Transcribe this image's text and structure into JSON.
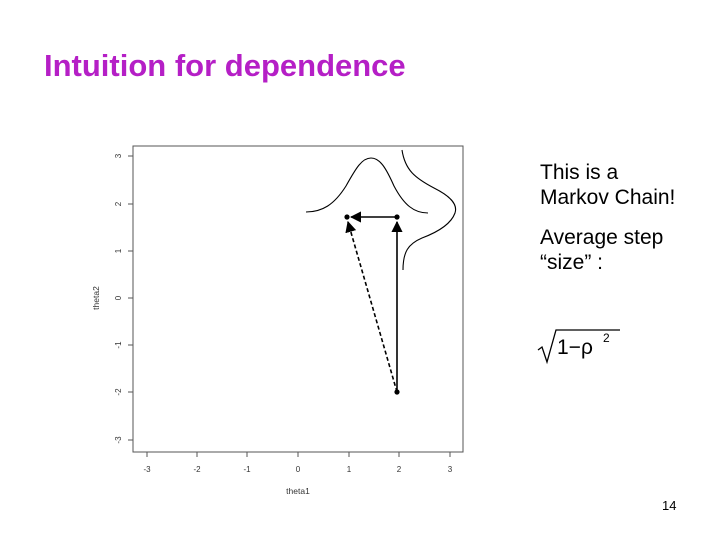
{
  "slide": {
    "title": "Intuition for dependence",
    "page_number": "14"
  },
  "bullets": [
    "This is a Markov Chain!",
    "Average step “size” :"
  ],
  "formula": {
    "radicand_text": "1−ρ",
    "exponent": "2"
  },
  "plot": {
    "xlabel": "theta1",
    "ylabel": "theta2",
    "xticks": [
      "-3",
      "-2",
      "-1",
      "0",
      "1",
      "2",
      "3"
    ],
    "yticks": [
      "-3",
      "-2",
      "-1",
      "0",
      "1",
      "2",
      "3"
    ],
    "xlim": [
      -3,
      3
    ],
    "ylim": [
      -3,
      3
    ],
    "points": [
      {
        "x": 1.95,
        "y": -1.9
      },
      {
        "x": 1.95,
        "y": 1.75
      },
      {
        "x": 0.95,
        "y": 1.75
      }
    ]
  }
}
